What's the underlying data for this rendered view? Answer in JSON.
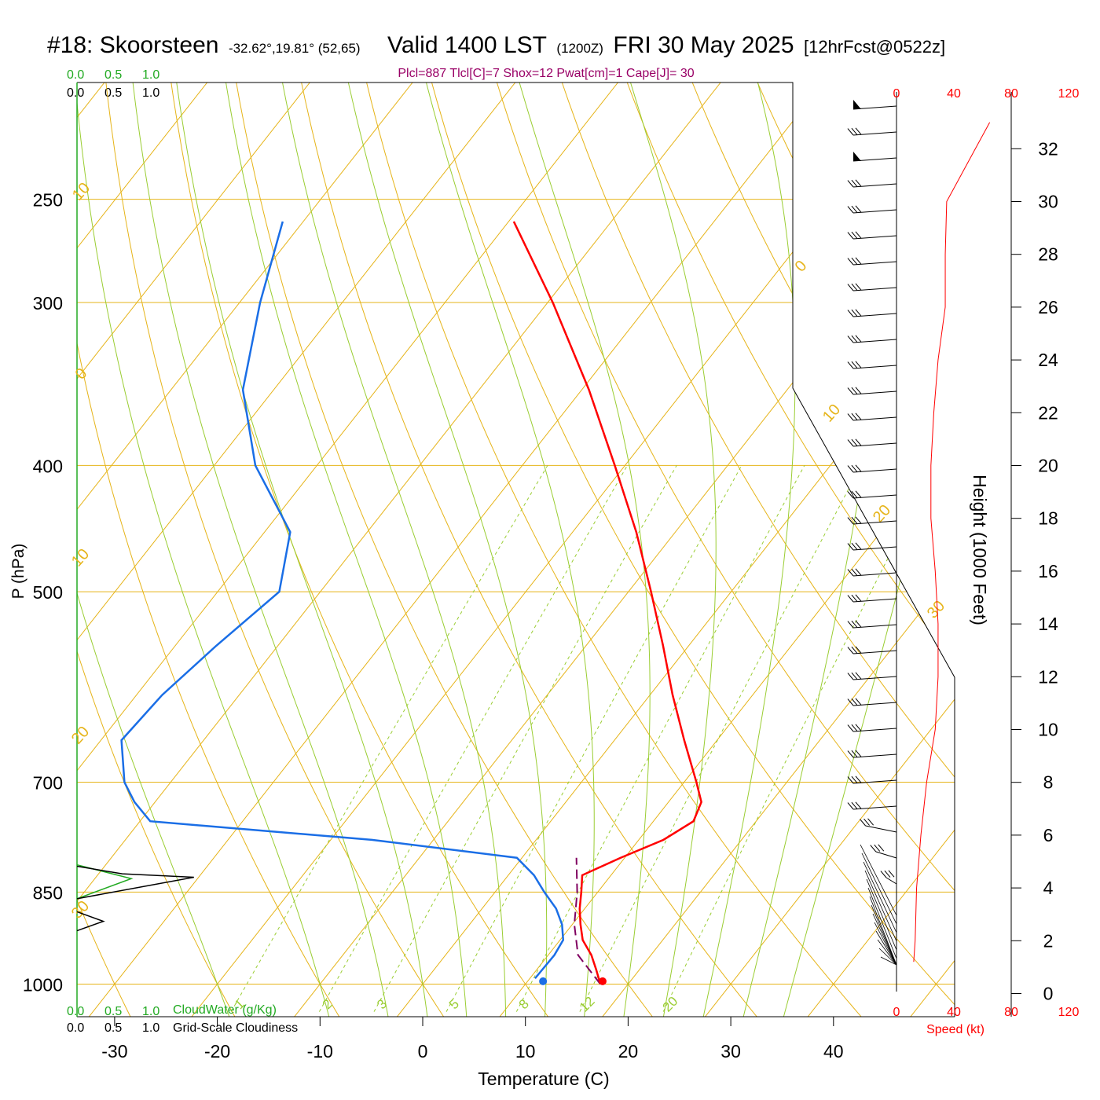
{
  "title": {
    "station": "#18: Skoorsteen",
    "coords": "-32.62°,19.81° (52,65)",
    "valid": "Valid 1400 LST",
    "zulu": "(1200Z)",
    "date": "FRI 30 May 2025",
    "forecast": "[12hrFcst@0522z]"
  },
  "stats_line": "Plcl=887 Tlcl[C]=7 Shox=12 Pwat[cm]=1 Cape[J]= 30",
  "axes": {
    "xlabel": "Temperature (C)",
    "ylabel": "P (hPa)",
    "height_label": "Height (1000 Feet)",
    "speed_label": "Speed (kt)",
    "cloudwater_label": "CloudWater (g/Kg)",
    "cloudiness_label": "Grid-Scale Cloudiness"
  },
  "cloud_scale": {
    "green_ticks": [
      "0.0",
      "0.5",
      "1.0"
    ],
    "black_ticks": [
      "0.0",
      "0.5",
      "1.0"
    ]
  },
  "speed_ticks": [
    "0",
    "40",
    "80",
    "120"
  ],
  "colors": {
    "temperature": "#ff0000",
    "dewpoint": "#1a6ee6",
    "parcel": "#800060",
    "isotherm": "#e6b419",
    "moist_adiabat": "#9acd32",
    "cloudwater": "#22aa22",
    "stats": "#990066"
  },
  "chart_data": {
    "type": "skew-t",
    "pressure_ticks": [
      250,
      300,
      400,
      500,
      700,
      850,
      1000
    ],
    "temp_ticks": [
      -30,
      -20,
      -10,
      0,
      10,
      20,
      30,
      40
    ],
    "height_ticks_kft": [
      0,
      2,
      4,
      6,
      8,
      10,
      12,
      14,
      16,
      18,
      20,
      22,
      24,
      26,
      28,
      30,
      32
    ],
    "isotherm_labels": [
      -30,
      -20,
      -10,
      0,
      10,
      20,
      30
    ],
    "isotherm_label_text": [
      "30",
      "20",
      "10",
      "0",
      "10",
      "20",
      "30"
    ],
    "mixing_ratio_labels": [
      "1",
      "2",
      "3",
      "5",
      "8",
      "12",
      "20"
    ],
    "temperature_profile": [
      {
        "p": 1000,
        "t": 17.3
      },
      {
        "p": 975,
        "t": 15.8
      },
      {
        "p": 950,
        "t": 14.2
      },
      {
        "p": 925,
        "t": 12.2
      },
      {
        "p": 900,
        "t": 10.8
      },
      {
        "p": 875,
        "t": 9.5
      },
      {
        "p": 850,
        "t": 8.4
      },
      {
        "p": 825,
        "t": 7.2
      },
      {
        "p": 800,
        "t": 9.6
      },
      {
        "p": 775,
        "t": 12.4
      },
      {
        "p": 750,
        "t": 13.9
      },
      {
        "p": 725,
        "t": 13.2
      },
      {
        "p": 700,
        "t": 11.2
      },
      {
        "p": 650,
        "t": 6.8
      },
      {
        "p": 600,
        "t": 2.2
      },
      {
        "p": 550,
        "t": -2.5
      },
      {
        "p": 500,
        "t": -7.8
      },
      {
        "p": 450,
        "t": -13.8
      },
      {
        "p": 400,
        "t": -21.0
      },
      {
        "p": 350,
        "t": -29.3
      },
      {
        "p": 300,
        "t": -39.5
      },
      {
        "p": 260,
        "t": -49.5
      }
    ],
    "dewpoint_profile": [
      {
        "p": 990,
        "t": 10.5
      },
      {
        "p": 950,
        "t": 10.6
      },
      {
        "p": 925,
        "t": 10.3
      },
      {
        "p": 900,
        "t": 9.0
      },
      {
        "p": 875,
        "t": 7.2
      },
      {
        "p": 850,
        "t": 4.8
      },
      {
        "p": 825,
        "t": 2.5
      },
      {
        "p": 800,
        "t": -0.5
      },
      {
        "p": 775,
        "t": -16.0
      },
      {
        "p": 750,
        "t": -39.0
      },
      {
        "p": 725,
        "t": -42.0
      },
      {
        "p": 700,
        "t": -44.5
      },
      {
        "p": 650,
        "t": -48.0
      },
      {
        "p": 600,
        "t": -47.5
      },
      {
        "p": 550,
        "t": -46.0
      },
      {
        "p": 500,
        "t": -44.0
      },
      {
        "p": 450,
        "t": -47.5
      },
      {
        "p": 400,
        "t": -56.0
      },
      {
        "p": 350,
        "t": -63.0
      },
      {
        "p": 300,
        "t": -68.0
      },
      {
        "p": 260,
        "t": -72.0
      }
    ],
    "parcel_path": [
      {
        "p": 1000,
        "t": 17.3
      },
      {
        "p": 950,
        "t": 12.9
      },
      {
        "p": 900,
        "t": 10.2
      },
      {
        "p": 850,
        "t": 8.0
      },
      {
        "p": 800,
        "t": 5.3
      }
    ],
    "surface_temperature_c": 17.3,
    "surface_dewpoint_c": 11.5,
    "cloudwater_gkg": [
      {
        "p": 860,
        "v": 0.0
      },
      {
        "p": 830,
        "v": 0.72
      },
      {
        "p": 810,
        "v": 0.0
      }
    ],
    "cloudiness": [
      {
        "p": 860,
        "v": 0.0
      },
      {
        "p": 828,
        "v": 1.55
      },
      {
        "p": 812,
        "v": 0.0
      },
      {
        "p": 895,
        "v": 0.35
      }
    ],
    "wind_speed_profile_kt": [
      {
        "h": 1.2,
        "s": 12
      },
      {
        "h": 2.0,
        "s": 13
      },
      {
        "h": 4.0,
        "s": 14
      },
      {
        "h": 6.0,
        "s": 17
      },
      {
        "h": 8.0,
        "s": 21
      },
      {
        "h": 10.0,
        "s": 27
      },
      {
        "h": 12.0,
        "s": 29
      },
      {
        "h": 14.0,
        "s": 29
      },
      {
        "h": 16.0,
        "s": 27
      },
      {
        "h": 18.0,
        "s": 24
      },
      {
        "h": 20.0,
        "s": 24
      },
      {
        "h": 22.0,
        "s": 26
      },
      {
        "h": 24.0,
        "s": 29
      },
      {
        "h": 26.0,
        "s": 34
      },
      {
        "h": 28.0,
        "s": 34
      },
      {
        "h": 30.0,
        "s": 35
      },
      {
        "h": 31.0,
        "s": 45
      },
      {
        "h": 32.0,
        "s": 55
      },
      {
        "h": 33.0,
        "s": 65
      }
    ]
  }
}
